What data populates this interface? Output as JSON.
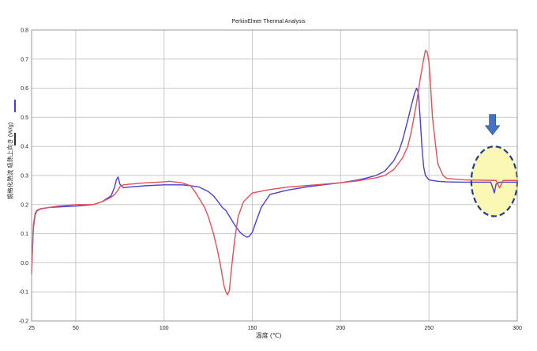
{
  "chart_data": {
    "type": "line",
    "title": "PerkinElmer Thermal Analysis",
    "xlabel": "温度 (℃)",
    "ylabel": "規格化熱流 吸熱上向き (W/g)",
    "xlim": [
      25,
      300
    ],
    "ylim": [
      -0.2,
      0.8
    ],
    "x_ticks": [
      25,
      50,
      100,
      150,
      200,
      250,
      300
    ],
    "y_ticks": [
      -0.2,
      -0.1,
      0.0,
      0.1,
      0.2,
      0.3,
      0.4,
      0.5,
      0.6,
      0.7,
      0.8
    ],
    "grid": true,
    "colors": {
      "blue": "#4a3fd0",
      "red": "#e0505a",
      "highlight_fill": "#fbf7b5",
      "highlight_border": "#1f3f7a",
      "arrow": "#4472c4"
    },
    "series": [
      {
        "color": "#4a3fd0",
        "x": [
          25,
          26,
          27,
          28,
          30,
          35,
          40,
          50,
          60,
          65,
          70,
          72,
          73,
          74,
          75,
          77,
          80,
          90,
          100,
          110,
          115,
          120,
          125,
          128,
          130,
          133,
          135,
          138,
          140,
          143,
          145,
          147,
          148,
          150,
          152,
          155,
          160,
          170,
          180,
          190,
          200,
          210,
          215,
          220,
          225,
          230,
          233,
          235,
          238,
          240,
          242,
          243,
          244,
          245,
          246,
          247,
          248,
          250,
          255,
          260,
          270,
          280,
          285,
          286,
          287,
          288,
          290,
          295,
          300
        ],
        "y": [
          -0.03,
          0.12,
          0.165,
          0.178,
          0.185,
          0.19,
          0.192,
          0.195,
          0.2,
          0.21,
          0.23,
          0.26,
          0.285,
          0.295,
          0.27,
          0.258,
          0.26,
          0.265,
          0.268,
          0.268,
          0.265,
          0.26,
          0.245,
          0.23,
          0.215,
          0.19,
          0.18,
          0.15,
          0.13,
          0.105,
          0.095,
          0.088,
          0.09,
          0.105,
          0.14,
          0.19,
          0.235,
          0.25,
          0.26,
          0.268,
          0.275,
          0.285,
          0.292,
          0.3,
          0.315,
          0.35,
          0.385,
          0.42,
          0.49,
          0.54,
          0.585,
          0.6,
          0.585,
          0.5,
          0.4,
          0.33,
          0.3,
          0.285,
          0.28,
          0.278,
          0.277,
          0.277,
          0.277,
          0.26,
          0.24,
          0.27,
          0.277,
          0.277,
          0.277
        ]
      },
      {
        "color": "#e0505a",
        "x": [
          25,
          26,
          27,
          28,
          30,
          35,
          40,
          50,
          60,
          65,
          70,
          72,
          74,
          75,
          77,
          80,
          90,
          100,
          103,
          110,
          115,
          118,
          120,
          123,
          125,
          128,
          130,
          132,
          134,
          135,
          136,
          137,
          138,
          140,
          142,
          145,
          150,
          160,
          170,
          180,
          190,
          200,
          210,
          220,
          225,
          230,
          235,
          238,
          240,
          243,
          245,
          247,
          248,
          249,
          250,
          251,
          252,
          254,
          255,
          258,
          260,
          270,
          280,
          288,
          289,
          290,
          291,
          292,
          295,
          300
        ],
        "y": [
          -0.04,
          0.13,
          0.17,
          0.18,
          0.186,
          0.19,
          0.195,
          0.2,
          0.2,
          0.21,
          0.225,
          0.235,
          0.25,
          0.262,
          0.268,
          0.27,
          0.275,
          0.278,
          0.28,
          0.275,
          0.265,
          0.24,
          0.22,
          0.19,
          0.16,
          0.1,
          0.05,
          -0.01,
          -0.08,
          -0.1,
          -0.11,
          -0.095,
          -0.03,
          0.08,
          0.16,
          0.21,
          0.24,
          0.252,
          0.26,
          0.265,
          0.27,
          0.275,
          0.282,
          0.292,
          0.3,
          0.32,
          0.36,
          0.4,
          0.45,
          0.55,
          0.63,
          0.7,
          0.73,
          0.725,
          0.69,
          0.6,
          0.5,
          0.39,
          0.34,
          0.3,
          0.29,
          0.285,
          0.284,
          0.283,
          0.27,
          0.258,
          0.27,
          0.283,
          0.283,
          0.283
        ]
      }
    ],
    "annotations": [
      {
        "type": "highlight-ellipse",
        "x_range": [
          274,
          300
        ],
        "y_range": [
          0.16,
          0.4
        ]
      },
      {
        "type": "arrow-down",
        "x": 286,
        "y_top": 0.51,
        "y_bottom": 0.44
      }
    ]
  }
}
